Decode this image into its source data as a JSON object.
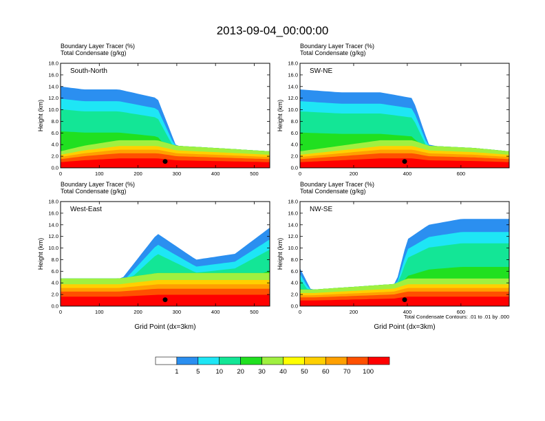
{
  "title": "2013-09-04_00:00:00",
  "figure_note": "Total Condensate Contours: .01 to .01 by .000",
  "x_axis_label": "Grid Point (dx=3km)",
  "colorbar": {
    "labels": [
      "1",
      "5",
      "10",
      "20",
      "30",
      "40",
      "50",
      "60",
      "70",
      "100"
    ],
    "colors": [
      "#ffffff",
      "#2b8ff0",
      "#1ee6f5",
      "#13e696",
      "#20e020",
      "#a0f040",
      "#ffff00",
      "#ffd000",
      "#ffa000",
      "#ff5000",
      "#ff0000"
    ]
  },
  "chart_data": [
    {
      "type": "heatmap",
      "panel": "South-North",
      "header_line1": "Boundary Layer Tracer   (%)",
      "header_line2": "Total Condensate   (g/kg)",
      "xlabel": "",
      "ylabel": "Height (km)",
      "xlim": [
        0,
        540
      ],
      "xticks": [
        0,
        100,
        200,
        300,
        400,
        500
      ],
      "ylim": [
        0,
        18
      ],
      "yticks": [
        "0.0",
        "2.0",
        "4.0",
        "6.0",
        "8.0",
        "10.0",
        "12.0",
        "14.0",
        "16.0",
        "18.0"
      ],
      "marker": {
        "x": 270,
        "y": 1.1
      },
      "profile": [
        {
          "x": 0,
          "top": 1.5,
          "mid": 14.0
        },
        {
          "x": 60,
          "top": 2.0,
          "mid": 13.5
        },
        {
          "x": 150,
          "top": 2.5,
          "mid": 13.5
        },
        {
          "x": 250,
          "top": 2.5,
          "mid": 12.0
        },
        {
          "x": 300,
          "top": 2.0,
          "mid": 3.5
        },
        {
          "x": 400,
          "top": 1.8,
          "mid": 2.5
        },
        {
          "x": 540,
          "top": 1.5,
          "mid": 2.5
        }
      ]
    },
    {
      "type": "heatmap",
      "panel": "SW-NE",
      "header_line1": "Boundary Layer Tracer   (%)",
      "header_line2": "Total Condensate   (g/kg)",
      "xlabel": "",
      "ylabel": "Height (km)",
      "xlim": [
        0,
        780
      ],
      "xticks": [
        0,
        200,
        400,
        600
      ],
      "ylim": [
        0,
        18
      ],
      "yticks": [
        "0.0",
        "2.0",
        "4.0",
        "6.0",
        "8.0",
        "10.0",
        "12.0",
        "14.0",
        "16.0",
        "18.0"
      ],
      "marker": {
        "x": 390,
        "y": 1.1
      },
      "profile": [
        {
          "x": 0,
          "top": 1.5,
          "mid": 13.5
        },
        {
          "x": 150,
          "top": 2.0,
          "mid": 13.0
        },
        {
          "x": 300,
          "top": 2.5,
          "mid": 13.0
        },
        {
          "x": 420,
          "top": 2.5,
          "mid": 12.0
        },
        {
          "x": 480,
          "top": 2.0,
          "mid": 4.0
        },
        {
          "x": 650,
          "top": 1.8,
          "mid": 2.5
        },
        {
          "x": 780,
          "top": 1.5,
          "mid": 2.5
        }
      ]
    },
    {
      "type": "heatmap",
      "panel": "West-East",
      "header_line1": "Boundary Layer Tracer   (%)",
      "header_line2": "Total Condensate   (g/kg)",
      "xlabel": "Grid Point (dx=3km)",
      "ylabel": "Height (km)",
      "xlim": [
        0,
        540
      ],
      "xticks": [
        0,
        100,
        200,
        300,
        400,
        500
      ],
      "ylim": [
        0,
        18
      ],
      "yticks": [
        "0.0",
        "2.0",
        "4.0",
        "6.0",
        "8.0",
        "10.0",
        "12.0",
        "14.0",
        "16.0",
        "18.0"
      ],
      "marker": {
        "x": 270,
        "y": 1.1
      },
      "profile": [
        {
          "x": 0,
          "top": 2.5,
          "mid": 4.0
        },
        {
          "x": 150,
          "top": 2.5,
          "mid": 4.0
        },
        {
          "x": 250,
          "top": 3.0,
          "mid": 12.5
        },
        {
          "x": 350,
          "top": 3.0,
          "mid": 8.0
        },
        {
          "x": 450,
          "top": 3.0,
          "mid": 9.0
        },
        {
          "x": 540,
          "top": 3.0,
          "mid": 13.5
        }
      ]
    },
    {
      "type": "heatmap",
      "panel": "NW-SE",
      "header_line1": "Boundary Layer Tracer   (%)",
      "header_line2": "Total Condensate   (g/kg)",
      "xlabel": "Grid Point (dx=3km)",
      "ylabel": "Height (km)",
      "xlim": [
        0,
        780
      ],
      "xticks": [
        0,
        200,
        400,
        600
      ],
      "ylim": [
        0,
        18
      ],
      "yticks": [
        "0.0",
        "2.0",
        "4.0",
        "6.0",
        "8.0",
        "10.0",
        "12.0",
        "14.0",
        "16.0",
        "18.0"
      ],
      "marker": {
        "x": 390,
        "y": 1.1
      },
      "profile": [
        {
          "x": 0,
          "top": 1.5,
          "mid": 6.5
        },
        {
          "x": 50,
          "top": 1.5,
          "mid": 2.0
        },
        {
          "x": 350,
          "top": 2.0,
          "mid": 2.5
        },
        {
          "x": 400,
          "top": 2.5,
          "mid": 11.5
        },
        {
          "x": 480,
          "top": 2.5,
          "mid": 14.0
        },
        {
          "x": 600,
          "top": 2.5,
          "mid": 15.0
        },
        {
          "x": 780,
          "top": 2.5,
          "mid": 15.0
        }
      ]
    }
  ]
}
